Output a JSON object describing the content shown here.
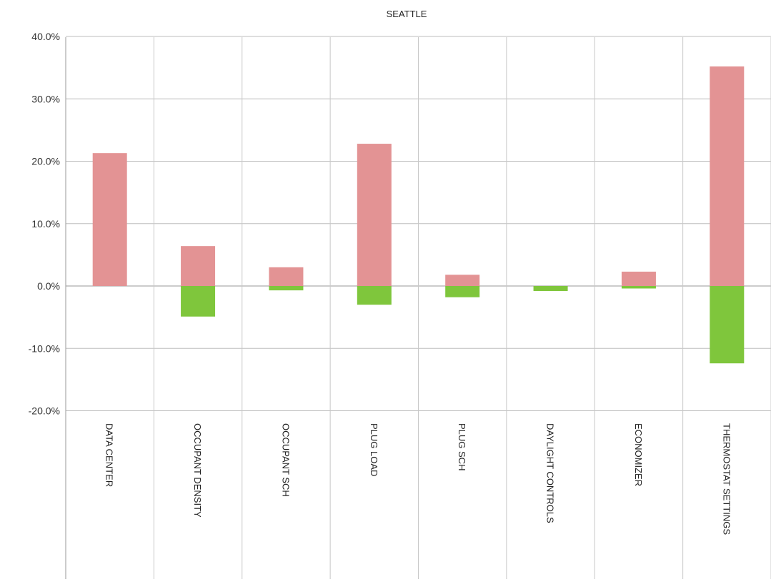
{
  "chart_data": {
    "type": "bar",
    "title": "SEATTLE",
    "categories": [
      "DATA CENTER",
      "OCCUPANT DENSITY",
      "OCCUPANT SCH",
      "PLUG LOAD",
      "PLUG SCH",
      "DAYLIGHT CONTROLS",
      "ECONOMIZER",
      "THERMOSTAT SETTINGS"
    ],
    "series": [
      {
        "values": [
          21.3,
          6.4,
          3.0,
          22.8,
          1.8,
          0.0,
          2.3,
          35.2
        ],
        "color": "#e39394"
      },
      {
        "values": [
          0.0,
          -4.9,
          -0.7,
          -3.0,
          -1.8,
          -0.8,
          -0.4,
          -12.4
        ],
        "color": "#7fc63c"
      }
    ],
    "yticks": [
      "40.0%",
      "30.0%",
      "20.0%",
      "10.0%",
      "0.0%",
      "-10.0%",
      "-20.0%"
    ],
    "ylim": [
      -20,
      40
    ],
    "grid": true,
    "stacked": true,
    "xlabel": "",
    "ylabel": ""
  }
}
